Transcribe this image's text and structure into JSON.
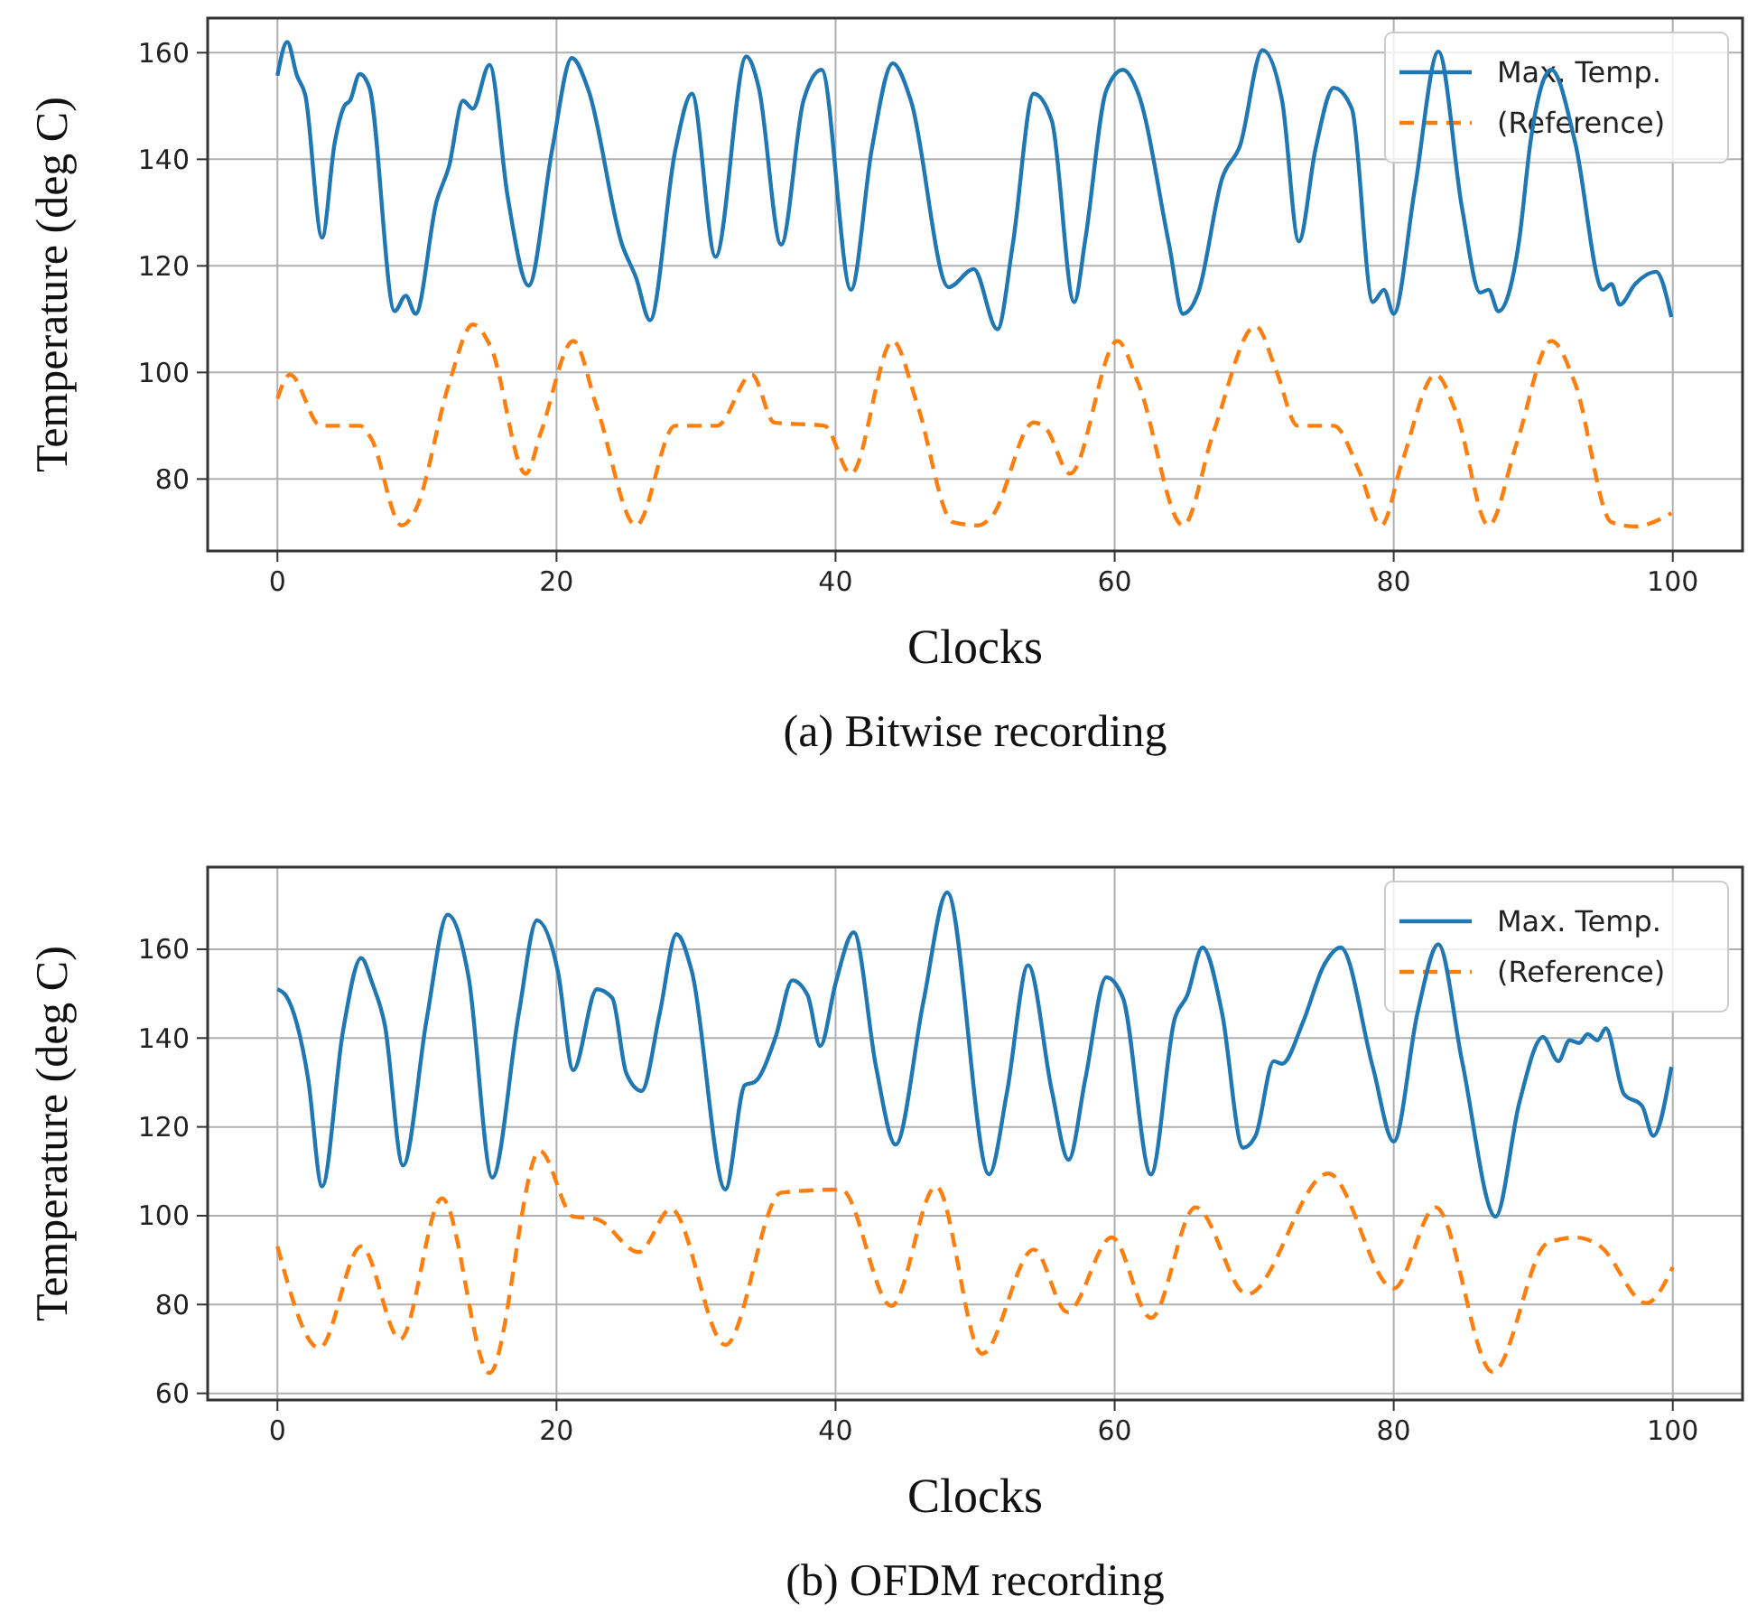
{
  "chart_data": [
    {
      "type": "line",
      "xlabel": "Clocks",
      "ylabel": "Temperature (deg C)",
      "annotations": [
        "(a) Bitwise recording"
      ],
      "xlim": [
        -5,
        105
      ],
      "ylim": [
        66.5,
        166.5
      ],
      "xticks": [
        0,
        20,
        40,
        60,
        80,
        100
      ],
      "yticks": [
        80,
        100,
        120,
        140,
        160
      ],
      "grid": true,
      "legend": "top right",
      "marker": "none",
      "series": [
        {
          "name": "Max. Temp.",
          "color": "#1f77b4",
          "line_style": "solid",
          "x": [
            0,
            0.7,
            1.4,
            2.0,
            3.2,
            4.1,
            4.8,
            5.2,
            5.9,
            6.6,
            8.4,
            9.2,
            9.9,
            11.4,
            12.3,
            13.3,
            14.0,
            15.2,
            16.5,
            18.0,
            19.7,
            21.1,
            22.3,
            24.7,
            25.7,
            26.7,
            28.5,
            29.7,
            31.4,
            33.6,
            34.5,
            36.1,
            37.7,
            39.0,
            41.1,
            42.6,
            44.1,
            45.4,
            48.1,
            49.9,
            51.6,
            52.7,
            54.2,
            55.5,
            57.1,
            57.9,
            59.4,
            60.6,
            61.7,
            63.9,
            64.9,
            66.0,
            67.7,
            69.0,
            70.6,
            72.0,
            73.2,
            74.4,
            75.7,
            77.0,
            78.5,
            79.3,
            80.0,
            81.5,
            83.2,
            84.9,
            86.2,
            86.8,
            87.5,
            89.0,
            89.8,
            91.3,
            93.0,
            95.0,
            95.6,
            96.2,
            97.3,
            98.8,
            99.9
          ],
          "values": [
            155.7,
            162,
            155.7,
            152,
            125.3,
            143,
            150,
            151,
            156,
            153.4,
            111.5,
            114.4,
            111,
            132,
            138.7,
            151,
            149.5,
            157.7,
            133,
            116.3,
            142,
            159,
            152.9,
            124,
            117.8,
            109.8,
            141.5,
            152.3,
            121.7,
            159.3,
            153.4,
            124,
            151,
            156.8,
            115.5,
            142,
            158,
            151,
            116,
            119.4,
            108.1,
            124,
            152.3,
            147.2,
            113.2,
            125,
            152.9,
            156.8,
            152.3,
            124,
            111,
            115,
            136.4,
            142.7,
            160.5,
            151,
            124.6,
            142,
            153.4,
            149.5,
            113.2,
            115.5,
            111,
            134.2,
            160.2,
            130.8,
            115,
            115.5,
            111.5,
            125,
            143.2,
            156.8,
            143.2,
            115.5,
            116.6,
            112.7,
            116.6,
            118.9,
            110.4
          ]
        },
        {
          "name": "(Reference)",
          "color": "#ff7f0e",
          "line_style": "dashed",
          "x": [
            0,
            0.9,
            3.1,
            5.9,
            6.7,
            8.9,
            9.9,
            12.3,
            14.0,
            15.3,
            17.8,
            18.9,
            21.2,
            22.9,
            25.7,
            28.5,
            31.5,
            34.0,
            35.6,
            39.2,
            41.1,
            44.1,
            45.8,
            48.4,
            50.2,
            51.2,
            54.2,
            55.1,
            56.8,
            60.2,
            61.7,
            64.9,
            67.1,
            70.1,
            71.6,
            73.1,
            75.7,
            77.6,
            79.1,
            80.6,
            83.0,
            84.5,
            86.8,
            88.8,
            91.3,
            93.0,
            95.6,
            97.3,
            99.9
          ],
          "values": [
            95.1,
            99.6,
            90,
            90,
            87.7,
            71.3,
            74.2,
            97.9,
            109,
            104.7,
            81,
            88.9,
            105.9,
            93.4,
            71.3,
            90,
            90,
            99.6,
            90.6,
            90,
            81,
            105.9,
            94.5,
            71.9,
            71.3,
            73,
            90.6,
            89.4,
            81,
            105.9,
            97.9,
            71.3,
            88.9,
            108.7,
            100.2,
            90,
            90,
            81,
            71.3,
            83.2,
            99.6,
            92.3,
            71.3,
            86.6,
            105.9,
            97.9,
            71.9,
            71.1,
            73.6
          ]
        }
      ]
    },
    {
      "type": "line",
      "xlabel": "Clocks",
      "ylabel": "Temperature (deg C)",
      "annotations": [
        "(b) OFDM recording"
      ],
      "xlim": [
        -5,
        105
      ],
      "ylim": [
        58.5,
        178.5
      ],
      "xticks": [
        0,
        20,
        40,
        60,
        80,
        100
      ],
      "yticks": [
        60,
        80,
        100,
        120,
        140,
        160
      ],
      "grid": true,
      "legend": "top right",
      "marker": "none",
      "series": [
        {
          "name": "Max. Temp.",
          "color": "#1f77b4",
          "line_style": "solid",
          "x": [
            0,
            0.6,
            2.2,
            3.2,
            4.7,
            6.0,
            6.8,
            7.7,
            9.0,
            10.7,
            12.2,
            13.7,
            15.4,
            17.3,
            18.6,
            20.1,
            21.2,
            22.9,
            24.0,
            25.0,
            26.1,
            27.4,
            28.6,
            29.7,
            32.1,
            33.5,
            34.2,
            35.7,
            36.9,
            38.0,
            38.9,
            40.0,
            41.3,
            42.9,
            44.3,
            46.3,
            48.0,
            51.0,
            52.3,
            53.8,
            55.5,
            56.7,
            57.9,
            59.4,
            60.6,
            62.6,
            64.3,
            65.2,
            66.3,
            67.7,
            69.2,
            70.1,
            71.4,
            72.0,
            73.5,
            75.0,
            76.2,
            78.5,
            80.0,
            81.7,
            83.2,
            84.9,
            87.3,
            89.0,
            90.7,
            91.8,
            92.6,
            93.3,
            93.9,
            94.6,
            95.2,
            96.5,
            97.8,
            98.6,
            99.9
          ],
          "values": [
            151,
            149.6,
            130.8,
            106.6,
            141.6,
            158,
            152.3,
            142.9,
            111.3,
            144.3,
            167.8,
            153.7,
            108.6,
            145.6,
            166.5,
            155,
            132.8,
            151,
            149,
            132.1,
            128.1,
            145.6,
            163.4,
            155,
            105.9,
            129.4,
            130.1,
            140.2,
            153,
            149.6,
            138.2,
            152.3,
            163.8,
            133.5,
            116,
            148.3,
            172.8,
            109.3,
            128.1,
            156.4,
            128.1,
            112.6,
            130.8,
            153.7,
            149,
            109.3,
            144.3,
            149.6,
            160.4,
            145.6,
            115.3,
            118,
            134.8,
            134.2,
            143.6,
            156.4,
            160.4,
            133.5,
            116.7,
            145.6,
            161.1,
            134.8,
            99.8,
            125.4,
            140.2,
            134.8,
            139.5,
            138.9,
            140.9,
            139.5,
            142.2,
            127.4,
            124.7,
            118,
            133.5
          ]
        },
        {
          "name": "(Reference)",
          "color": "#ff7f0e",
          "line_style": "dashed",
          "x": [
            0,
            3.0,
            6.0,
            8.8,
            11.8,
            15.2,
            18.8,
            21.2,
            22.9,
            25.9,
            28.2,
            32.1,
            36.1,
            40.4,
            44.0,
            47.2,
            50.5,
            54.2,
            56.6,
            59.8,
            62.6,
            65.8,
            69.5,
            75.3,
            80.0,
            83.0,
            87.1,
            91.0,
            93.1,
            94.8,
            98.1,
            100
          ],
          "values": [
            93.1,
            70.2,
            93.1,
            72.2,
            103.9,
            64.6,
            114.6,
            99.8,
            99.2,
            91.8,
            101.5,
            70.9,
            105.2,
            105.9,
            79.7,
            106.6,
            68.9,
            92.4,
            78.3,
            95.1,
            77,
            101.9,
            82.3,
            109.5,
            83.6,
            101.9,
            64.8,
            93.8,
            95.1,
            93.1,
            80.3,
            88.4
          ]
        }
      ]
    }
  ]
}
